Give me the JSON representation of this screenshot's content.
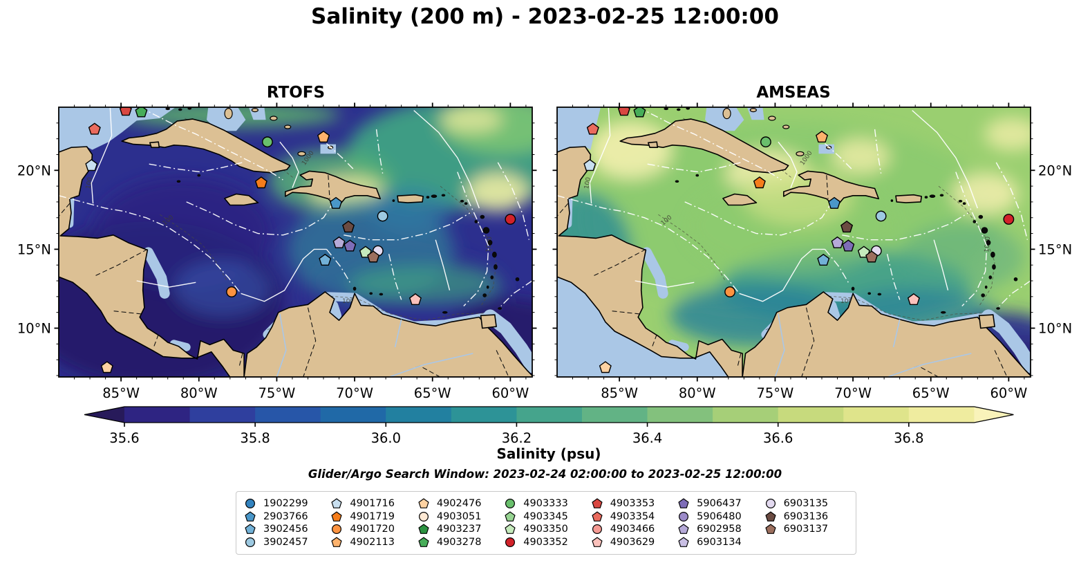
{
  "title": "Salinity (200 m) - 2023-02-25 12:00:00",
  "panels": [
    {
      "title": "RTOFS"
    },
    {
      "title": "AMSEAS"
    }
  ],
  "axis": {
    "lon_labels": [
      "85°W",
      "80°W",
      "75°W",
      "70°W",
      "65°W",
      "60°W"
    ],
    "lat_labels": [
      "20°N",
      "15°N",
      "10°N"
    ]
  },
  "colorbar": {
    "label": "Salinity (psu)",
    "tick_labels": [
      "35.6",
      "35.8",
      "36.0",
      "36.2",
      "36.4",
      "36.6",
      "36.8"
    ],
    "segment_colors": [
      "#2e2482",
      "#2f3f9e",
      "#2756a8",
      "#2069a7",
      "#2280a0",
      "#2d9397",
      "#45a48c",
      "#62b385",
      "#83c17d",
      "#a6cf78",
      "#c7da7d",
      "#dfe48b",
      "#efec9f"
    ],
    "under_color": "#271a5a",
    "over_color": "#f9f3ba"
  },
  "subtitle": "Glider/Argo Search Window: 2023-02-24 02:00:00 to 2023-02-25 12:00:00",
  "legend": {
    "items": [
      {
        "id": "1902299",
        "marker": "circle",
        "color": "#3383bf"
      },
      {
        "id": "2903766",
        "marker": "pentagon",
        "color": "#4a97c9"
      },
      {
        "id": "3902456",
        "marker": "pentagon",
        "color": "#72b1d7"
      },
      {
        "id": "3902457",
        "marker": "circle",
        "color": "#9dc9e1"
      },
      {
        "id": "4901716",
        "marker": "pentagon",
        "color": "#c8dff0"
      },
      {
        "id": "4901719",
        "marker": "pentagon",
        "color": "#f57d1b"
      },
      {
        "id": "4901720",
        "marker": "circle",
        "color": "#fd9340"
      },
      {
        "id": "4902113",
        "marker": "pentagon",
        "color": "#fdb26c"
      },
      {
        "id": "4902476",
        "marker": "pentagon",
        "color": "#fdd2a2"
      },
      {
        "id": "4903051",
        "marker": "circle",
        "color": "#fee9d4"
      },
      {
        "id": "4903237",
        "marker": "pentagon",
        "color": "#2c9241"
      },
      {
        "id": "4903278",
        "marker": "pentagon",
        "color": "#47ad59"
      },
      {
        "id": "4903333",
        "marker": "circle",
        "color": "#69bf6c"
      },
      {
        "id": "4903345",
        "marker": "pentagon",
        "color": "#97d492"
      },
      {
        "id": "4903350",
        "marker": "pentagon",
        "color": "#c5eabc"
      },
      {
        "id": "4903352",
        "marker": "circle",
        "color": "#d2222a"
      },
      {
        "id": "4903353",
        "marker": "pentagon",
        "color": "#d94741"
      },
      {
        "id": "4903354",
        "marker": "pentagon",
        "color": "#ea6b5e"
      },
      {
        "id": "4903466",
        "marker": "circle",
        "color": "#f69a93"
      },
      {
        "id": "4903629",
        "marker": "pentagon",
        "color": "#fbc1bb"
      },
      {
        "id": "5906437",
        "marker": "pentagon",
        "color": "#7e6db8"
      },
      {
        "id": "5906480",
        "marker": "circle",
        "color": "#9c8bc9"
      },
      {
        "id": "6902958",
        "marker": "pentagon",
        "color": "#b6aad8"
      },
      {
        "id": "6903134",
        "marker": "pentagon",
        "color": "#c9bfe4"
      },
      {
        "id": "6903135",
        "marker": "circle",
        "color": "#e3daf0"
      },
      {
        "id": "6903136",
        "marker": "pentagon",
        "color": "#6b4b42"
      },
      {
        "id": "6903137",
        "marker": "pentagon",
        "color": "#9c6f5e"
      }
    ]
  },
  "chart_data": {
    "type": "heatmap",
    "title": "Salinity (200 m) - 2023-02-25 12:00:00",
    "panels": [
      "RTOFS",
      "AMSEAS"
    ],
    "variable": "Salinity (psu)",
    "depth_m": 200,
    "colorbar_ticks": [
      35.6,
      35.8,
      36.0,
      36.2,
      36.4,
      36.6,
      36.8
    ],
    "color_levels": [
      35.6,
      35.7,
      35.8,
      35.9,
      36.0,
      36.1,
      36.2,
      36.3,
      36.4,
      36.5,
      36.6,
      36.7,
      36.8,
      36.9
    ],
    "colorbar_extend": "both",
    "extent": {
      "lon": [
        -89.0,
        -58.6
      ],
      "lat": [
        6.9,
        24.0
      ]
    },
    "lon_ticks_deg_w": [
      85,
      80,
      75,
      70,
      65,
      60
    ],
    "lat_ticks_deg_n": [
      20,
      15,
      10
    ],
    "search_window": [
      "2023-02-24 02:00:00",
      "2023-02-25 12:00:00"
    ],
    "observations": [
      {
        "id": "4903353",
        "lon": -84.7,
        "lat": 23.8
      },
      {
        "id": "4903278",
        "lon": -83.7,
        "lat": 23.7
      },
      {
        "id": "4903354",
        "lon": -86.7,
        "lat": 22.6
      },
      {
        "id": "4903333",
        "lon": -75.6,
        "lat": 21.8
      },
      {
        "id": "4902113",
        "lon": -72.0,
        "lat": 22.1
      },
      {
        "id": "4901716",
        "lon": -86.9,
        "lat": 20.3
      },
      {
        "id": "4901719",
        "lon": -76.0,
        "lat": 19.2
      },
      {
        "id": "2903766",
        "lon": -71.2,
        "lat": 17.9
      },
      {
        "id": "3902457",
        "lon": -68.2,
        "lat": 17.1
      },
      {
        "id": "4903352",
        "lon": -60.0,
        "lat": 16.9
      },
      {
        "id": "6903136",
        "lon": -70.4,
        "lat": 16.4
      },
      {
        "id": "6902958",
        "lon": -71.0,
        "lat": 15.4
      },
      {
        "id": "5906437",
        "lon": -70.3,
        "lat": 15.2
      },
      {
        "id": "4903350",
        "lon": -69.3,
        "lat": 14.8
      },
      {
        "id": "6903135",
        "lon": -68.5,
        "lat": 14.9
      },
      {
        "id": "6903137",
        "lon": -68.8,
        "lat": 14.5
      },
      {
        "id": "3902456",
        "lon": -71.9,
        "lat": 14.3
      },
      {
        "id": "4901720",
        "lon": -77.9,
        "lat": 12.3
      },
      {
        "id": "4903629",
        "lon": -66.1,
        "lat": 11.8
      },
      {
        "id": "4902476",
        "lon": -85.9,
        "lat": 7.5
      }
    ]
  }
}
